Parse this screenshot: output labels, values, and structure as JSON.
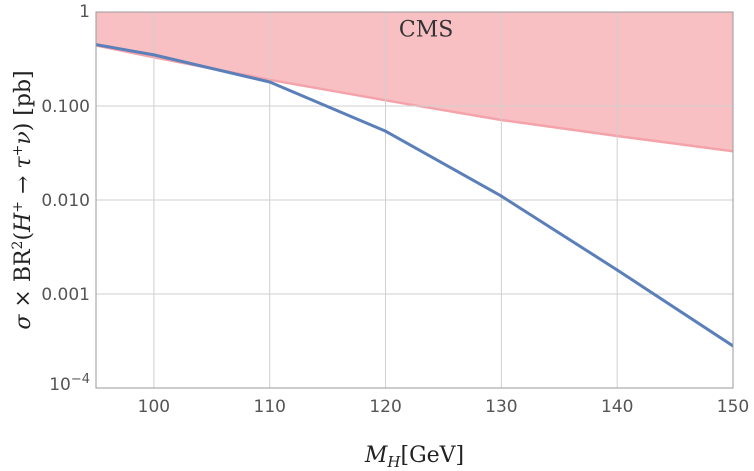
{
  "chart_data": {
    "type": "line",
    "scale": {
      "x": "linear",
      "y": "log10"
    },
    "xlim": [
      95,
      150
    ],
    "ylim": [
      0.0001,
      1
    ],
    "grid": true,
    "xlabel": "M_H [GeV]",
    "ylabel": "σ × BR²(H⁺ → τ⁺ν) [pb]",
    "xticks": [
      {
        "value": 100,
        "label": "100"
      },
      {
        "value": 110,
        "label": "110"
      },
      {
        "value": 120,
        "label": "120"
      },
      {
        "value": 130,
        "label": "130"
      },
      {
        "value": 140,
        "label": "140"
      },
      {
        "value": 150,
        "label": "150"
      }
    ],
    "yticks": [
      {
        "value": 0.0001,
        "base": "10",
        "exp": "−4"
      },
      {
        "value": 0.001,
        "label": "0.001"
      },
      {
        "value": 0.01,
        "label": "0.010"
      },
      {
        "value": 0.1,
        "label": "0.100"
      },
      {
        "value": 1,
        "label": "1"
      }
    ],
    "annotations": [
      {
        "text": "CMS"
      }
    ],
    "exclusion_region": {
      "name": "CMS",
      "color": "#f9c0c4",
      "edge_color": "#f4a3aa",
      "boundary": [
        {
          "x": 95,
          "y": 0.44
        },
        {
          "x": 100,
          "y": 0.33
        },
        {
          "x": 110,
          "y": 0.19
        },
        {
          "x": 120,
          "y": 0.115
        },
        {
          "x": 130,
          "y": 0.071
        },
        {
          "x": 140,
          "y": 0.048
        },
        {
          "x": 150,
          "y": 0.033
        }
      ]
    },
    "series": [
      {
        "color": "#5b7fb8",
        "points": [
          {
            "x": 95,
            "y": 0.45
          },
          {
            "x": 100,
            "y": 0.35
          },
          {
            "x": 110,
            "y": 0.18
          },
          {
            "x": 120,
            "y": 0.054
          },
          {
            "x": 130,
            "y": 0.011
          },
          {
            "x": 140,
            "y": 0.0018
          },
          {
            "x": 150,
            "y": 0.00028
          }
        ]
      }
    ]
  }
}
